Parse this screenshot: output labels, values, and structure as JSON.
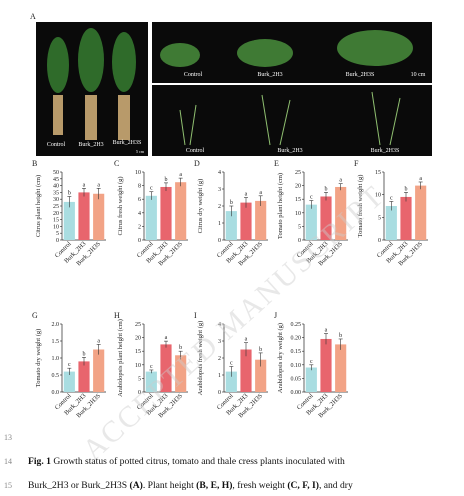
{
  "figure": {
    "panel_a": {
      "label": "A",
      "left_labels": [
        "Control",
        "Burk_2H3",
        "Burk_2H3S"
      ],
      "left_scale": "5 cm",
      "top_labels": [
        "Control",
        "Burk_2H3",
        "Burk_2H3S"
      ],
      "top_scale": "10 cm",
      "bottom_labels": [
        "Control",
        "Burk_2H3",
        "Burk_2H3S"
      ]
    },
    "watermark": "ACCEPTED MANUSCRIPT"
  },
  "chart_data": [
    {
      "type": "bar",
      "panel": "B",
      "ylabel": "Citrus plant height (cm)",
      "categories": [
        "Control",
        "Burk_2H3",
        "Burk_2H3S"
      ],
      "values": [
        28,
        35,
        34
      ],
      "errors": [
        4,
        3,
        4
      ],
      "annotations": [
        "b",
        "a",
        "a"
      ],
      "colors": [
        "#a9dde1",
        "#e8656d",
        "#f2a386"
      ],
      "ylim": [
        0,
        50
      ],
      "yticks": [
        0,
        5,
        10,
        15,
        20,
        25,
        30,
        35,
        40,
        45,
        50
      ]
    },
    {
      "type": "bar",
      "panel": "C",
      "ylabel": "Citrus fresh weight (g)",
      "categories": [
        "Control",
        "Burk_2H3",
        "Burk_2H3S"
      ],
      "values": [
        6.5,
        7.8,
        8.5
      ],
      "errors": [
        0.6,
        0.6,
        0.6
      ],
      "annotations": [
        "c",
        "b",
        "a"
      ],
      "colors": [
        "#a9dde1",
        "#e8656d",
        "#f2a386"
      ],
      "ylim": [
        0,
        10
      ],
      "yticks": [
        0,
        2,
        4,
        6,
        8,
        10
      ]
    },
    {
      "type": "bar",
      "panel": "D",
      "ylabel": "Citrus dry weight (g)",
      "categories": [
        "Control",
        "Burk_2H3",
        "Burk_2H3S"
      ],
      "values": [
        1.7,
        2.2,
        2.3
      ],
      "errors": [
        0.3,
        0.3,
        0.3
      ],
      "annotations": [
        "b",
        "a",
        "a"
      ],
      "colors": [
        "#a9dde1",
        "#e8656d",
        "#f2a386"
      ],
      "ylim": [
        0,
        4
      ],
      "yticks": [
        0,
        1,
        2,
        3,
        4
      ]
    },
    {
      "type": "bar",
      "panel": "E",
      "ylabel": "Tomato plant height (cm)",
      "categories": [
        "Control",
        "Burk_2H3",
        "Burk_2H3S"
      ],
      "values": [
        13,
        16,
        19.5
      ],
      "errors": [
        1.5,
        1.5,
        1.2
      ],
      "annotations": [
        "c",
        "b",
        "a"
      ],
      "colors": [
        "#a9dde1",
        "#e8656d",
        "#f2a386"
      ],
      "ylim": [
        0,
        25
      ],
      "yticks": [
        0,
        5,
        10,
        15,
        20,
        25
      ]
    },
    {
      "type": "bar",
      "panel": "F",
      "ylabel": "Tomato fresh weight (g)",
      "categories": [
        "Control",
        "Burk_2H3",
        "Burk_2H3S"
      ],
      "values": [
        7.5,
        9.5,
        12
      ],
      "errors": [
        1,
        1,
        0.8
      ],
      "annotations": [
        "c",
        "b",
        "a"
      ],
      "colors": [
        "#a9dde1",
        "#e8656d",
        "#f2a386"
      ],
      "ylim": [
        0,
        15
      ],
      "yticks": [
        0,
        5,
        10,
        15
      ]
    },
    {
      "type": "bar",
      "panel": "G",
      "ylabel": "Tomato dry weight (g)",
      "categories": [
        "Control",
        "Burk_2H3",
        "Burk_2H3S"
      ],
      "values": [
        0.6,
        0.9,
        1.25
      ],
      "errors": [
        0.1,
        0.12,
        0.15
      ],
      "annotations": [
        "c",
        "b",
        "a"
      ],
      "colors": [
        "#a9dde1",
        "#e8656d",
        "#f2a386"
      ],
      "ylim": [
        0,
        2
      ],
      "yticks": [
        {
          "value": 0,
          "label": "0.0"
        },
        {
          "value": 0.5,
          "label": "0.5"
        },
        {
          "value": 1,
          "label": "1.0"
        },
        {
          "value": 1.5,
          "label": "1.5"
        },
        {
          "value": 2,
          "label": "2.0"
        }
      ]
    },
    {
      "type": "bar",
      "panel": "H",
      "ylabel": "Arabidopsis plant height (cm)",
      "categories": [
        "Control",
        "Burk_2H3",
        "Burk_2H3S"
      ],
      "values": [
        7.5,
        17.5,
        13.5
      ],
      "errors": [
        0.6,
        1.2,
        1.5
      ],
      "annotations": [
        "c",
        "a",
        "b"
      ],
      "colors": [
        "#a9dde1",
        "#e8656d",
        "#f2a386"
      ],
      "ylim": [
        0,
        25
      ],
      "yticks": [
        0,
        5,
        10,
        15,
        20,
        25
      ]
    },
    {
      "type": "bar",
      "panel": "I",
      "ylabel": "Arabidopsis fresh weight (g)",
      "categories": [
        "Control",
        "Burk_2H3",
        "Burk_2H3S"
      ],
      "values": [
        1.2,
        2.5,
        1.9
      ],
      "errors": [
        0.3,
        0.4,
        0.4
      ],
      "annotations": [
        "c",
        "a",
        "b"
      ],
      "colors": [
        "#a9dde1",
        "#e8656d",
        "#f2a386"
      ],
      "ylim": [
        0,
        4
      ],
      "yticks": [
        0,
        1,
        2,
        3,
        4
      ]
    },
    {
      "type": "bar",
      "panel": "J",
      "ylabel": "Arabidopsis dry weight (g)",
      "categories": [
        "Control",
        "Burk_2H3",
        "Burk_2H3S"
      ],
      "values": [
        0.09,
        0.195,
        0.175
      ],
      "errors": [
        0.01,
        0.02,
        0.02
      ],
      "annotations": [
        "c",
        "a",
        "b"
      ],
      "colors": [
        "#a9dde1",
        "#e8656d",
        "#f2a386"
      ],
      "ylim": [
        0,
        0.25
      ],
      "yticks": [
        {
          "value": 0,
          "label": "0.00"
        },
        {
          "value": 0.05,
          "label": "0.05"
        },
        {
          "value": 0.1,
          "label": "0.10"
        },
        {
          "value": 0.15,
          "label": "0.15"
        },
        {
          "value": 0.2,
          "label": "0.20"
        },
        {
          "value": 0.25,
          "label": "0.25"
        }
      ]
    }
  ],
  "caption": {
    "line_numbers": [
      "13",
      "14",
      "15"
    ],
    "line1": [
      {
        "text": "Fig. 1",
        "bold": true
      },
      {
        "text": " Growth status of potted citrus, tomato and thale cress plants inoculated with",
        "bold": false
      }
    ],
    "line2": [
      {
        "text": "Burk_2H3 or Burk_2H3S ",
        "bold": false
      },
      {
        "text": "(A)",
        "bold": true
      },
      {
        "text": ". Plant height ",
        "bold": false
      },
      {
        "text": "(B, E, H)",
        "bold": true
      },
      {
        "text": ", fresh weight ",
        "bold": false
      },
      {
        "text": "(C, F, I)",
        "bold": true
      },
      {
        "text": ", and dry",
        "bold": false
      }
    ]
  }
}
